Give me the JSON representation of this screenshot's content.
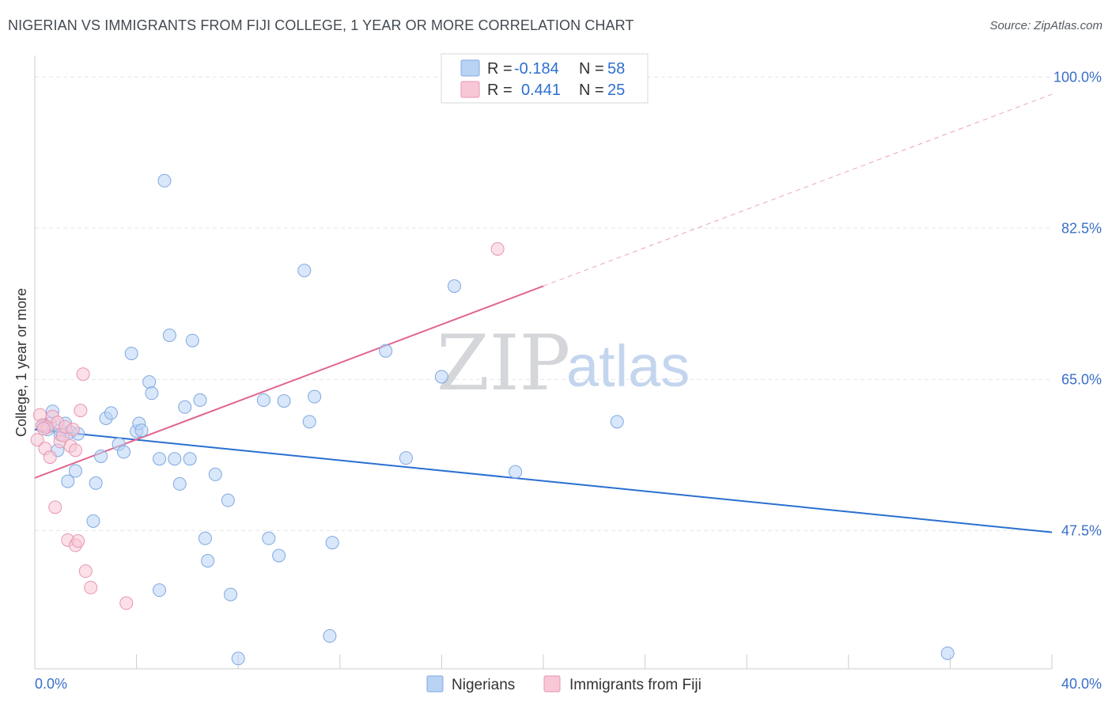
{
  "title": "NIGERIAN VS IMMIGRANTS FROM FIJI COLLEGE, 1 YEAR OR MORE CORRELATION CHART",
  "source": "Source: ZipAtlas.com",
  "watermark": {
    "zip": "ZIP",
    "atlas": "atlas"
  },
  "colors": {
    "blue_fill": "#b9d3f5",
    "blue_stroke": "#7fa8e0",
    "blue_line": "#2a6fd1",
    "pink_fill": "#f7c7d6",
    "pink_stroke": "#e896b1",
    "pink_line": "#e0668f",
    "grid": "#e3e6ea",
    "label": "#3a6fc7"
  },
  "legend_box": {
    "rows": [
      {
        "r_label": "R =",
        "r_value": "-0.184",
        "n_label": "N =",
        "n_value": "58"
      },
      {
        "r_label": "R =",
        "r_value": "0.441",
        "n_label": "N =",
        "n_value": "25"
      }
    ]
  },
  "chart_data": {
    "type": "scatter",
    "title": "NIGERIAN VS IMMIGRANTS FROM FIJI COLLEGE, 1 YEAR OR MORE CORRELATION CHART",
    "xlabel": "",
    "ylabel": "College, 1 year or more",
    "xlim": [
      0,
      40
    ],
    "ylim": [
      31.5,
      102.5
    ],
    "x_tick_labels": [
      "0.0%",
      "40.0%"
    ],
    "y_ticks": [
      47.5,
      65.0,
      82.5,
      100.0
    ],
    "y_tick_labels": [
      "47.5%",
      "65.0%",
      "82.5%",
      "100.0%"
    ],
    "grid": true,
    "legend_position": "top-center",
    "series": [
      {
        "name": "Nigerians",
        "r": -0.184,
        "n": 58,
        "trend": {
          "x": [
            0,
            40
          ],
          "y": [
            59.2,
            47.3
          ],
          "dashed_extension": false
        },
        "points": [
          [
            0.4,
            59.6
          ],
          [
            0.5,
            59.2
          ],
          [
            0.6,
            59.9
          ],
          [
            0.7,
            61.3
          ],
          [
            0.9,
            56.8
          ],
          [
            1.0,
            59.1
          ],
          [
            1.0,
            58.6
          ],
          [
            1.2,
            59.9
          ],
          [
            1.3,
            53.2
          ],
          [
            1.4,
            58.9
          ],
          [
            1.6,
            54.4
          ],
          [
            1.7,
            58.7
          ],
          [
            2.3,
            48.6
          ],
          [
            2.4,
            53.0
          ],
          [
            2.6,
            56.1
          ],
          [
            2.8,
            60.5
          ],
          [
            3.0,
            61.1
          ],
          [
            3.3,
            57.5
          ],
          [
            3.5,
            56.6
          ],
          [
            3.8,
            68.0
          ],
          [
            4.0,
            59.0
          ],
          [
            4.1,
            59.9
          ],
          [
            4.2,
            59.1
          ],
          [
            4.5,
            64.7
          ],
          [
            4.6,
            63.4
          ],
          [
            4.9,
            40.6
          ],
          [
            4.9,
            55.8
          ],
          [
            5.1,
            88.0
          ],
          [
            5.3,
            70.1
          ],
          [
            5.5,
            55.8
          ],
          [
            5.7,
            52.9
          ],
          [
            5.9,
            61.8
          ],
          [
            6.1,
            55.8
          ],
          [
            6.2,
            69.5
          ],
          [
            6.5,
            62.6
          ],
          [
            6.7,
            46.6
          ],
          [
            6.8,
            44.0
          ],
          [
            7.1,
            54.0
          ],
          [
            7.6,
            51.0
          ],
          [
            7.7,
            40.1
          ],
          [
            8.0,
            32.7
          ],
          [
            9.0,
            62.6
          ],
          [
            9.2,
            46.6
          ],
          [
            9.6,
            44.6
          ],
          [
            9.8,
            62.5
          ],
          [
            10.6,
            77.6
          ],
          [
            10.8,
            60.1
          ],
          [
            11.0,
            63.0
          ],
          [
            11.6,
            35.3
          ],
          [
            11.7,
            46.1
          ],
          [
            13.8,
            68.3
          ],
          [
            14.6,
            55.9
          ],
          [
            16.0,
            65.3
          ],
          [
            16.5,
            75.8
          ],
          [
            18.9,
            54.3
          ],
          [
            22.9,
            60.1
          ],
          [
            35.9,
            33.3
          ],
          [
            0.3,
            59.6
          ]
        ]
      },
      {
        "name": "Immigrants from Fiji",
        "r": 0.441,
        "n": 25,
        "trend": {
          "x": [
            0,
            20
          ],
          "y": [
            53.6,
            75.8
          ],
          "dashed_extension": {
            "x": [
              20,
              40
            ],
            "y": [
              75.8,
              98.0
            ]
          }
        },
        "points": [
          [
            0.1,
            58.0
          ],
          [
            0.2,
            60.9
          ],
          [
            0.3,
            59.7
          ],
          [
            0.4,
            57.0
          ],
          [
            0.5,
            59.5
          ],
          [
            0.6,
            56.0
          ],
          [
            0.7,
            60.7
          ],
          [
            0.8,
            50.2
          ],
          [
            0.9,
            60.0
          ],
          [
            1.0,
            57.8
          ],
          [
            1.1,
            58.5
          ],
          [
            1.2,
            59.5
          ],
          [
            1.3,
            46.4
          ],
          [
            1.4,
            57.3
          ],
          [
            1.5,
            59.2
          ],
          [
            1.6,
            56.8
          ],
          [
            1.6,
            45.8
          ],
          [
            1.7,
            46.3
          ],
          [
            1.8,
            61.4
          ],
          [
            1.9,
            65.6
          ],
          [
            2.0,
            42.8
          ],
          [
            2.2,
            40.9
          ],
          [
            3.6,
            39.1
          ],
          [
            18.2,
            80.1
          ],
          [
            0.35,
            59.3
          ]
        ]
      }
    ]
  }
}
